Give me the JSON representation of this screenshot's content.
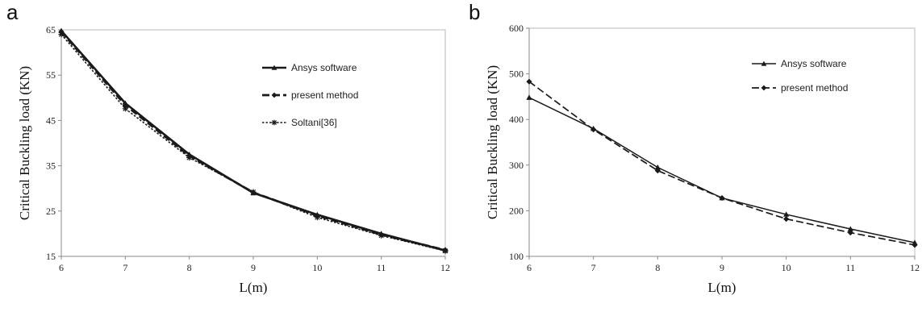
{
  "chart_data": [
    {
      "type": "line",
      "panel_label": "a",
      "xlabel": "L(m)",
      "ylabel": "Critical Buckling load (KN)",
      "x": [
        6,
        7,
        8,
        9,
        10,
        11,
        12
      ],
      "xlim": [
        6,
        12
      ],
      "ylim": [
        15,
        65
      ],
      "xticks": [
        6,
        7,
        8,
        9,
        10,
        11,
        12
      ],
      "yticks": [
        15,
        25,
        35,
        45,
        55,
        65
      ],
      "grid": false,
      "legend_position": "top-right",
      "series": [
        {
          "name": "Ansys software",
          "values": [
            64.8,
            48.8,
            37.5,
            29.0,
            24.2,
            20.0,
            16.3
          ],
          "style": "solid-bold",
          "marker": "triangle",
          "color": "#1a1a1a"
        },
        {
          "name": "present method",
          "values": [
            64.6,
            48.4,
            37.2,
            29.1,
            24.0,
            19.8,
            16.4
          ],
          "style": "dashed-bold",
          "marker": "diamond",
          "color": "#1a1a1a"
        },
        {
          "name": "Soltani[36]",
          "values": [
            64.0,
            47.6,
            36.8,
            29.2,
            23.6,
            19.6,
            16.2
          ],
          "style": "dotted",
          "marker": "star",
          "color": "#1a1a1a"
        }
      ]
    },
    {
      "type": "line",
      "panel_label": "b",
      "xlabel": "L(m)",
      "ylabel": "Critical Buckling load (KN)",
      "x": [
        6,
        7,
        8,
        9,
        10,
        11,
        12
      ],
      "xlim": [
        6,
        12
      ],
      "ylim": [
        100,
        600
      ],
      "xticks": [
        6,
        7,
        8,
        9,
        10,
        11,
        12
      ],
      "yticks": [
        100,
        200,
        300,
        400,
        500,
        600
      ],
      "grid": false,
      "legend_position": "top-right",
      "series": [
        {
          "name": "Ansys software",
          "values": [
            448,
            380,
            295,
            228,
            192,
            160,
            130
          ],
          "style": "solid",
          "marker": "triangle",
          "color": "#1a1a1a"
        },
        {
          "name": "present method",
          "values": [
            483,
            378,
            288,
            228,
            182,
            152,
            125
          ],
          "style": "dashed",
          "marker": "diamond",
          "color": "#1a1a1a"
        }
      ]
    }
  ]
}
